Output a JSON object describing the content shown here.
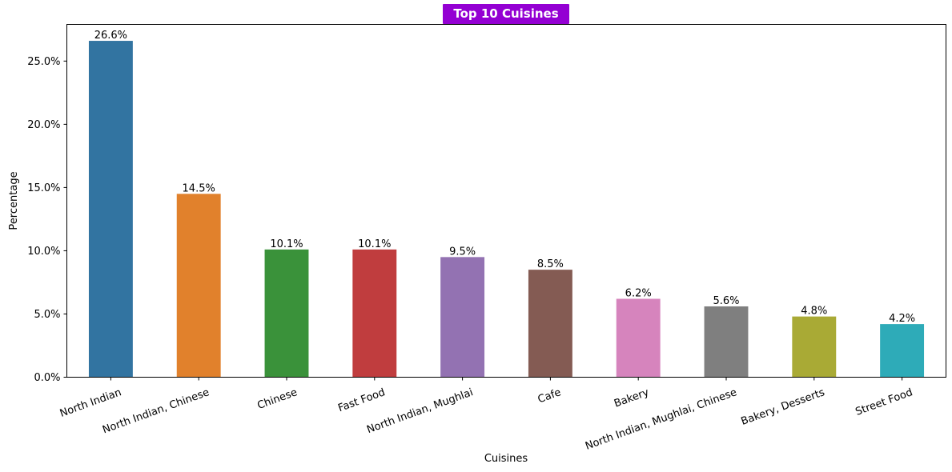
{
  "chart_data": {
    "type": "bar",
    "title": "Top 10 Cuisines",
    "title_bg_color": "#9400d3",
    "xlabel": "Cuisines",
    "ylabel": "Percentage",
    "ylim": [
      0,
      27.9
    ],
    "yticks": [
      0,
      5,
      10,
      15,
      20,
      25
    ],
    "ytick_labels": [
      "0.0%",
      "5.0%",
      "10.0%",
      "15.0%",
      "20.0%",
      "25.0%"
    ],
    "grid": false,
    "categories": [
      "North Indian",
      "North Indian, Chinese",
      "Chinese",
      "Fast Food",
      "North Indian, Mughlai",
      "Cafe",
      "Bakery",
      "North Indian, Mughlai, Chinese",
      "Bakery, Desserts",
      "Street Food"
    ],
    "values": [
      26.6,
      14.5,
      10.1,
      10.1,
      9.5,
      8.5,
      6.2,
      5.6,
      4.8,
      4.2
    ],
    "value_labels": [
      "26.6%",
      "14.5%",
      "10.1%",
      "10.1%",
      "9.5%",
      "8.5%",
      "6.2%",
      "5.6%",
      "4.8%",
      "4.2%"
    ],
    "colors": [
      "#3274a1",
      "#e1812c",
      "#3a923a",
      "#c03d3e",
      "#9372b2",
      "#845b53",
      "#d684bd",
      "#7f7f7f",
      "#a9aa35",
      "#2eabb8"
    ]
  }
}
